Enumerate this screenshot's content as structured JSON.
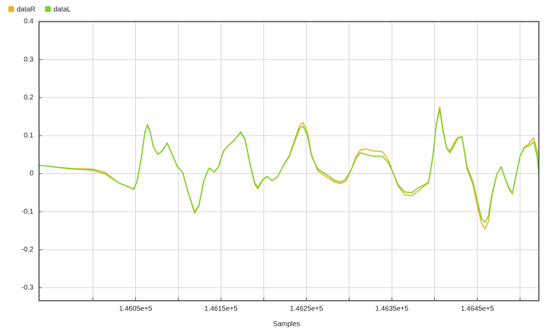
{
  "chart_data": {
    "type": "line",
    "x_label": "Samples",
    "x": [
      145937,
      145973,
      146000,
      146014,
      146030,
      146048,
      146052,
      146057,
      146061,
      146064,
      146067,
      146071,
      146076,
      146081,
      146087,
      146092,
      146099,
      146105,
      146110,
      146115,
      146119,
      146124,
      146130,
      146136,
      146142,
      146147,
      146153,
      146158,
      146165,
      146173,
      146178,
      146183,
      146189,
      146193,
      146199,
      146204,
      146210,
      146216,
      146222,
      146230,
      146236,
      146242,
      146246,
      146251,
      146256,
      146263,
      146269,
      146276,
      146283,
      146290,
      146296,
      146302,
      146308,
      146313,
      146319,
      146328,
      146339,
      146346,
      146351,
      146357,
      146365,
      146373,
      146381,
      146389,
      146393,
      146398,
      146402,
      146406,
      146410,
      146414,
      146418,
      146422,
      146427,
      146432,
      146434,
      146438,
      146445,
      146450,
      146455,
      146459,
      146463,
      146467,
      146473,
      146478,
      146482,
      146487,
      146491,
      146494,
      146500,
      146505,
      146510,
      146516,
      146520,
      146522
    ],
    "series": [
      {
        "name": "dataR",
        "color": "#edb120",
        "values": [
          0.022,
          0.014,
          0.012,
          0.004,
          -0.024,
          -0.041,
          -0.018,
          0.046,
          0.11,
          0.13,
          0.112,
          0.07,
          0.051,
          0.06,
          0.08,
          0.055,
          0.018,
          0.004,
          -0.037,
          -0.075,
          -0.104,
          -0.085,
          -0.018,
          0.015,
          0.004,
          0.018,
          0.06,
          0.073,
          0.087,
          0.108,
          0.09,
          0.035,
          -0.025,
          -0.04,
          -0.016,
          -0.008,
          -0.018,
          -0.009,
          0.018,
          0.048,
          0.088,
          0.127,
          0.135,
          0.11,
          0.05,
          0.008,
          -0.002,
          -0.012,
          -0.022,
          -0.026,
          -0.02,
          0.008,
          0.045,
          0.062,
          0.065,
          0.06,
          0.058,
          0.035,
          0.005,
          -0.032,
          -0.055,
          -0.058,
          -0.045,
          -0.03,
          -0.024,
          0.046,
          0.13,
          0.176,
          0.115,
          0.068,
          0.06,
          0.078,
          0.095,
          0.097,
          0.07,
          0.012,
          -0.03,
          -0.085,
          -0.13,
          -0.145,
          -0.125,
          -0.06,
          0,
          0.018,
          -0.01,
          -0.04,
          -0.053,
          -0.02,
          0.046,
          0.07,
          0.078,
          0.094,
          0.06,
          0
        ]
      },
      {
        "name": "dataL",
        "color": "#77d32a",
        "values": [
          0.022,
          0.013,
          0.009,
          0,
          -0.024,
          -0.04,
          -0.018,
          0.046,
          0.11,
          0.128,
          0.11,
          0.07,
          0.051,
          0.059,
          0.081,
          0.055,
          0.018,
          0.004,
          -0.037,
          -0.073,
          -0.101,
          -0.083,
          -0.018,
          0.015,
          0.004,
          0.018,
          0.059,
          0.073,
          0.086,
          0.11,
          0.092,
          0.037,
          -0.022,
          -0.037,
          -0.015,
          -0.007,
          -0.018,
          -0.009,
          0.018,
          0.046,
          0.083,
          0.119,
          0.125,
          0.101,
          0.046,
          0.013,
          0.004,
          -0.006,
          -0.018,
          -0.022,
          -0.015,
          0.009,
          0.04,
          0.055,
          0.051,
          0.046,
          0.046,
          0.028,
          0.004,
          -0.028,
          -0.048,
          -0.05,
          -0.037,
          -0.028,
          -0.022,
          0.046,
          0.128,
          0.169,
          0.11,
          0.068,
          0.055,
          0.07,
          0.092,
          0.097,
          0.073,
          0.018,
          -0.022,
          -0.073,
          -0.119,
          -0.128,
          -0.11,
          -0.055,
          0,
          0.018,
          -0.009,
          -0.037,
          -0.051,
          -0.018,
          0.046,
          0.068,
          0.073,
          0.083,
          0.046,
          0
        ]
      }
    ],
    "xlim": [
      145937,
      146522
    ],
    "ylim": [
      -0.334,
      0.4
    ],
    "yticks": [
      0.4,
      0.3,
      0.2,
      0.1,
      0,
      -0.1,
      -0.2,
      -0.3
    ],
    "xticks": [
      {
        "value": 146050,
        "label": "1.4605e+5"
      },
      {
        "value": 146150,
        "label": "1.4615e+5"
      },
      {
        "value": 146250,
        "label": "1.4625e+5"
      },
      {
        "value": 146350,
        "label": "1.4635e+5"
      },
      {
        "value": 146450,
        "label": "1.4645e+5"
      }
    ],
    "xgrid": [
      146000,
      146100,
      146200,
      146300,
      146400,
      146500
    ],
    "grid": true,
    "legend": "top-left"
  }
}
